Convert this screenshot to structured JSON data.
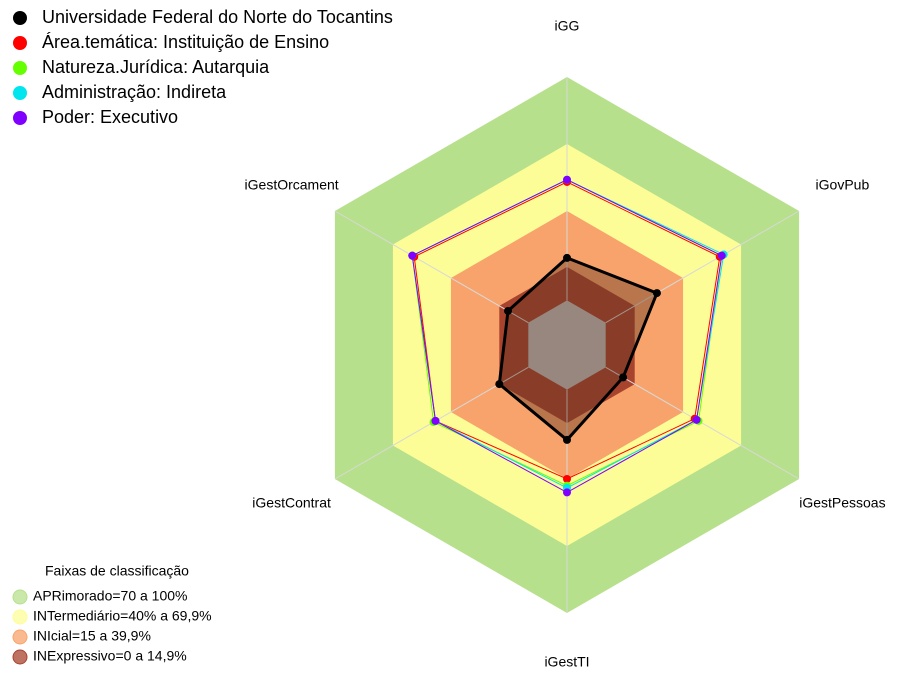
{
  "chart_data": {
    "type": "radar",
    "categories": [
      "iGG",
      "iGovPub",
      "iGestPessoas",
      "iGestTI",
      "iGestContrat",
      "iGestOrcament"
    ],
    "rlim": [
      0,
      100
    ],
    "series": [
      {
        "name": "Universidade Federal do Norte do Tocantins",
        "color": "#000000",
        "values": [
          19,
          26.5,
          9,
          22.5,
          15,
          10.5
        ]
      },
      {
        "name": "Área.temática: Instituição de Ensino",
        "color": "#ff0000",
        "values": [
          53,
          59,
          46,
          40,
          48,
          59
        ]
      },
      {
        "name": "Natureza.Jurídica: Autarquia",
        "color": "#66ff00",
        "values": [
          54,
          60,
          48,
          43,
          49,
          60
        ]
      },
      {
        "name": "Administração: Indireta",
        "color": "#00e5ee",
        "values": [
          54,
          61,
          47,
          44,
          48,
          60
        ]
      },
      {
        "name": "Poder: Executivo",
        "color": "#7f00ff",
        "values": [
          54,
          60,
          47,
          46,
          48,
          60
        ]
      }
    ],
    "bands_title": "Faixas de classificação",
    "bands": [
      {
        "label": "APRimorado=70 a 100%",
        "color": "#b7e08c",
        "limit": 100
      },
      {
        "label": "INTermediário=40% a 69,9%",
        "color": "#fdfd98",
        "limit": 70
      },
      {
        "label": "INIcial=15 a 39,9%",
        "color": "#f8a36b",
        "limit": 40
      },
      {
        "label": "INExpressivo=0 a 14,9%",
        "color": "#a8432e",
        "limit": 15
      }
    ]
  }
}
